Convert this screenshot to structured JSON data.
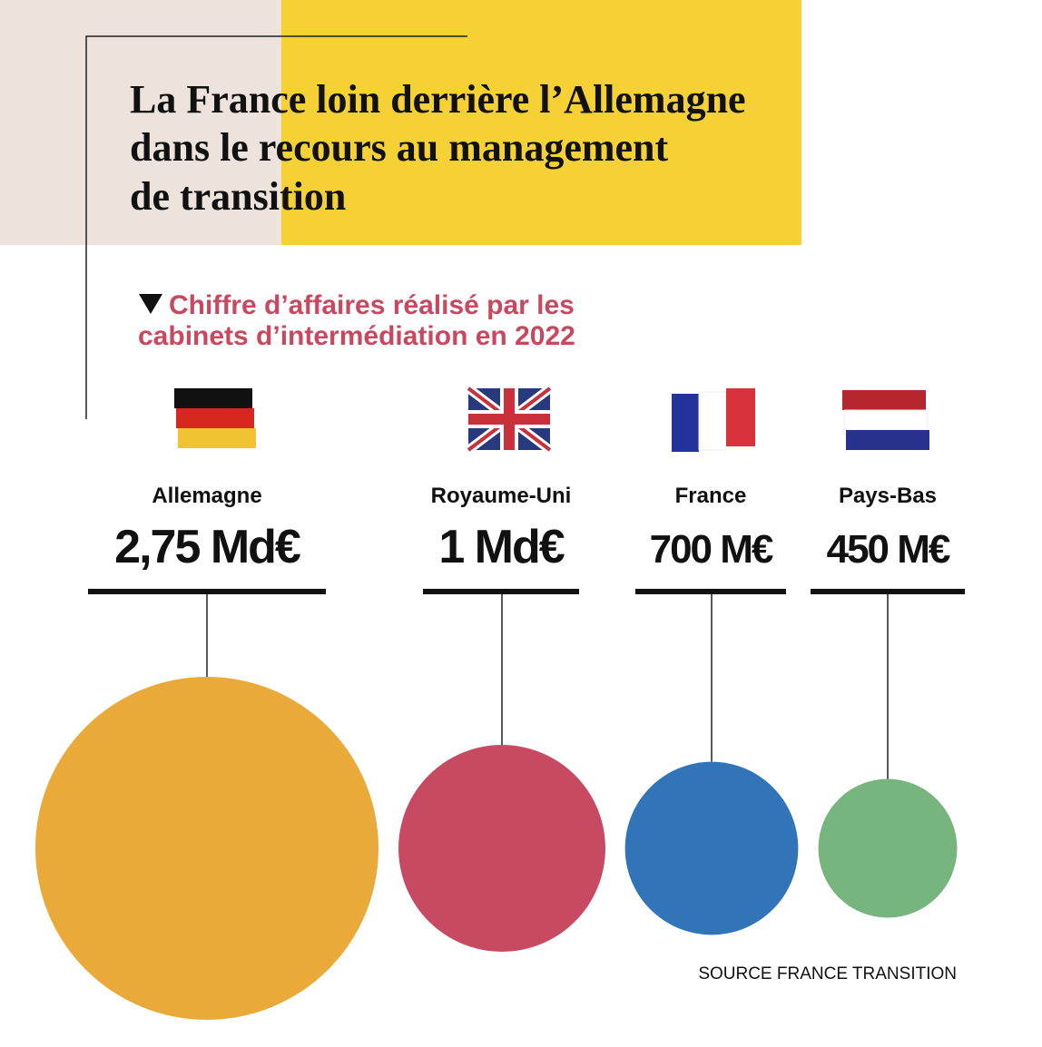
{
  "chart_data": {
    "type": "bubble",
    "title": [
      "La France loin derrière l’Allemagne",
      "dans le recours au management",
      "de transition"
    ],
    "subtitle": [
      "Chiffre d’affaires réalisé par les",
      "cabinets d’intermédiation en 2022"
    ],
    "categories": [
      "Allemagne",
      "Royaume-Uni",
      "France",
      "Pays-Bas"
    ],
    "values": [
      2750,
      1000,
      700,
      450
    ],
    "value_labels": [
      "2,75 Md€",
      "1 Md€",
      "700 M€",
      "450 M€"
    ],
    "colors": [
      "#eaaa3a",
      "#c84a62",
      "#3174b8",
      "#76b57e"
    ],
    "source": "SOURCE FRANCE TRANSITION"
  }
}
